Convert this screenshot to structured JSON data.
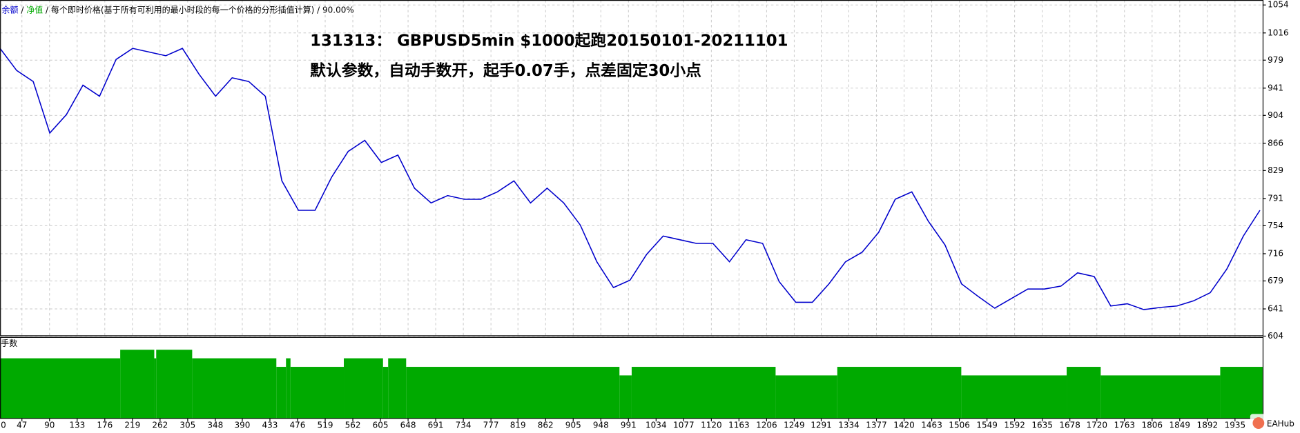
{
  "chart_data": {
    "type": "line",
    "legend": {
      "separator": "/",
      "items": [
        {
          "text": "余额",
          "color": "#0000cc"
        },
        {
          "text": "净值",
          "color": "#00aa00"
        },
        {
          "text": "每个即时价格(基于所有可利用的最小时段的每一个价格的分形插值计算)",
          "color": "#000000"
        },
        {
          "text": "90.00%",
          "color": "#000000"
        }
      ]
    },
    "annotations": [
      "131313： GBPUSD5min $1000起跑20150101-20211101",
      "默认参数，自动手数开，起手0.07手，点差固定30小点"
    ],
    "watermark": "EAHub",
    "xlim": [
      13,
      1978
    ],
    "xticks": [
      0,
      47,
      90,
      133,
      176,
      219,
      262,
      305,
      348,
      390,
      433,
      476,
      519,
      562,
      605,
      648,
      691,
      734,
      777,
      819,
      862,
      905,
      948,
      991,
      1034,
      1077,
      1120,
      1163,
      1206,
      1249,
      1291,
      1334,
      1377,
      1420,
      1463,
      1506,
      1549,
      1592,
      1635,
      1678,
      1720,
      1763,
      1806,
      1849,
      1892,
      1935
    ],
    "ylim": [
      604,
      1054
    ],
    "yticks": [
      604,
      641,
      679,
      716,
      754,
      791,
      829,
      866,
      904,
      941,
      979,
      1016,
      1054
    ],
    "grid": true,
    "x": [
      13,
      38.8,
      64.6,
      90.4,
      116.2,
      142,
      167.8,
      193.6,
      219.4,
      245.2,
      271,
      296.8,
      322.6,
      348.4,
      374.2,
      400,
      425.8,
      451.6,
      477.4,
      503.2,
      529,
      554.8,
      580.6,
      606.4,
      632.2,
      658,
      683.8,
      709.6,
      735.4,
      761.2,
      787,
      812.8,
      838.6,
      864.4,
      890.2,
      916,
      941.8,
      967.6,
      993.4,
      1019.2,
      1045,
      1070.8,
      1096.6,
      1122.4,
      1148.2,
      1174,
      1199.8,
      1225.6,
      1251.4,
      1277.2,
      1303,
      1328.8,
      1354.6,
      1380.4,
      1406.2,
      1432,
      1457.8,
      1483.6,
      1509.4,
      1535.2,
      1561,
      1586.8,
      1612.6,
      1638.4,
      1664.2,
      1690,
      1715.8,
      1741.6,
      1767.4,
      1793.2,
      1819,
      1844.8,
      1870.6,
      1896.4,
      1922.2,
      1948,
      1973.8
    ],
    "series": [
      {
        "name": "余额",
        "color": "#0000cc",
        "values": [
          995,
          965,
          950,
          880,
          905,
          945,
          930,
          980,
          995,
          990,
          985,
          995,
          960,
          930,
          955,
          950,
          930,
          815,
          775,
          775,
          820,
          855,
          870,
          840,
          850,
          805,
          785,
          795,
          790,
          790,
          800,
          815,
          785,
          805,
          785,
          755,
          705,
          670,
          680,
          715,
          740,
          735,
          730,
          730,
          705,
          735,
          730,
          678,
          650,
          650,
          675,
          705,
          718,
          745,
          790,
          800,
          760,
          728,
          675,
          658,
          642,
          655,
          668,
          668,
          672,
          690,
          685,
          645,
          648,
          640,
          643,
          645,
          652,
          663,
          695,
          740,
          775
        ]
      }
    ],
    "lots": {
      "label": "手数",
      "color": "#00aa00",
      "ylim": [
        0,
        0.094
      ],
      "x": [
        13,
        200,
        253,
        256,
        312,
        443,
        458,
        465,
        548,
        609,
        617,
        645,
        977,
        996,
        1220,
        1316,
        1509,
        1673,
        1726,
        1912
      ],
      "values": [
        0.07,
        0.08,
        0.07,
        0.08,
        0.07,
        0.06,
        0.07,
        0.06,
        0.07,
        0.06,
        0.07,
        0.06,
        0.05,
        0.06,
        0.05,
        0.06,
        0.05,
        0.06,
        0.05,
        0.06
      ]
    }
  }
}
